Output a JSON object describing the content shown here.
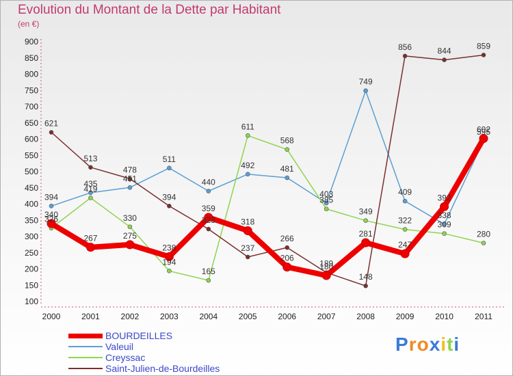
{
  "chart_data": {
    "type": "line",
    "title": "Evolution du Montant de la Dette par Habitant",
    "subtitle": "(en €)",
    "x": [
      "2000",
      "2001",
      "2002",
      "2003",
      "2004",
      "2005",
      "2006",
      "2007",
      "2008",
      "2009",
      "2010",
      "2011"
    ],
    "ylim": [
      100,
      900
    ],
    "yticks": [
      100,
      150,
      200,
      250,
      300,
      350,
      400,
      450,
      500,
      550,
      600,
      650,
      700,
      750,
      800,
      850,
      900
    ],
    "grid": false,
    "legend_position": "bottom-left",
    "series": [
      {
        "name": "Valeuil",
        "color": "#5a9fd4",
        "values": [
          394,
          435,
          451,
          511,
          440,
          492,
          481,
          403,
          749,
          409,
          338,
          595
        ],
        "labels": [
          "394",
          "435",
          "451",
          "511",
          "440",
          "492",
          "481",
          "403",
          "749",
          "409",
          "338",
          "595"
        ]
      },
      {
        "name": "Creyssac",
        "color": "#8ed44f",
        "values": [
          326,
          419,
          330,
          194,
          165,
          611,
          568,
          385,
          349,
          322,
          309,
          280
        ],
        "labels": [
          "326",
          "419",
          "330",
          "194",
          "165",
          "611",
          "568",
          "385",
          "349",
          "322",
          "309",
          "280"
        ]
      },
      {
        "name": "Saint-Julien-de-Bourdeilles",
        "color": "#7a2e2e",
        "values": [
          621,
          513,
          478,
          394,
          323,
          237,
          266,
          189,
          148,
          856,
          844,
          859
        ],
        "labels": [
          "621",
          "513",
          "478",
          "394",
          "323",
          "237",
          "266",
          "189",
          "148",
          "856",
          "844",
          "859"
        ]
      },
      {
        "name": "BOURDEILLES",
        "color": "#ee0000",
        "values": [
          340,
          267,
          275,
          238,
          359,
          318,
          206,
          180,
          281,
          247,
          392,
          602
        ],
        "labels": [
          "340",
          "267",
          "275",
          "238",
          "359",
          "318",
          "206",
          "180",
          "281",
          "247",
          "392",
          "602"
        ]
      }
    ]
  },
  "legend": {
    "items": [
      {
        "name": "BOURDEILLES",
        "color": "#ee0000",
        "thickness": 7
      },
      {
        "name": "Valeuil",
        "color": "#5a9fd4",
        "thickness": 2
      },
      {
        "name": "Creyssac",
        "color": "#8ed44f",
        "thickness": 2
      },
      {
        "name": "Saint-Julien-de-Bourdeilles",
        "color": "#7a2e2e",
        "thickness": 2
      }
    ]
  },
  "logo": {
    "letters": [
      "P",
      "r",
      "o",
      "x",
      "i",
      "t",
      "i"
    ],
    "colors": [
      "#3a7bd5",
      "#f08a24",
      "#f08a24",
      "#3a7bd5",
      "#f0c020",
      "#8ed44f",
      "#3a7bd5"
    ]
  }
}
